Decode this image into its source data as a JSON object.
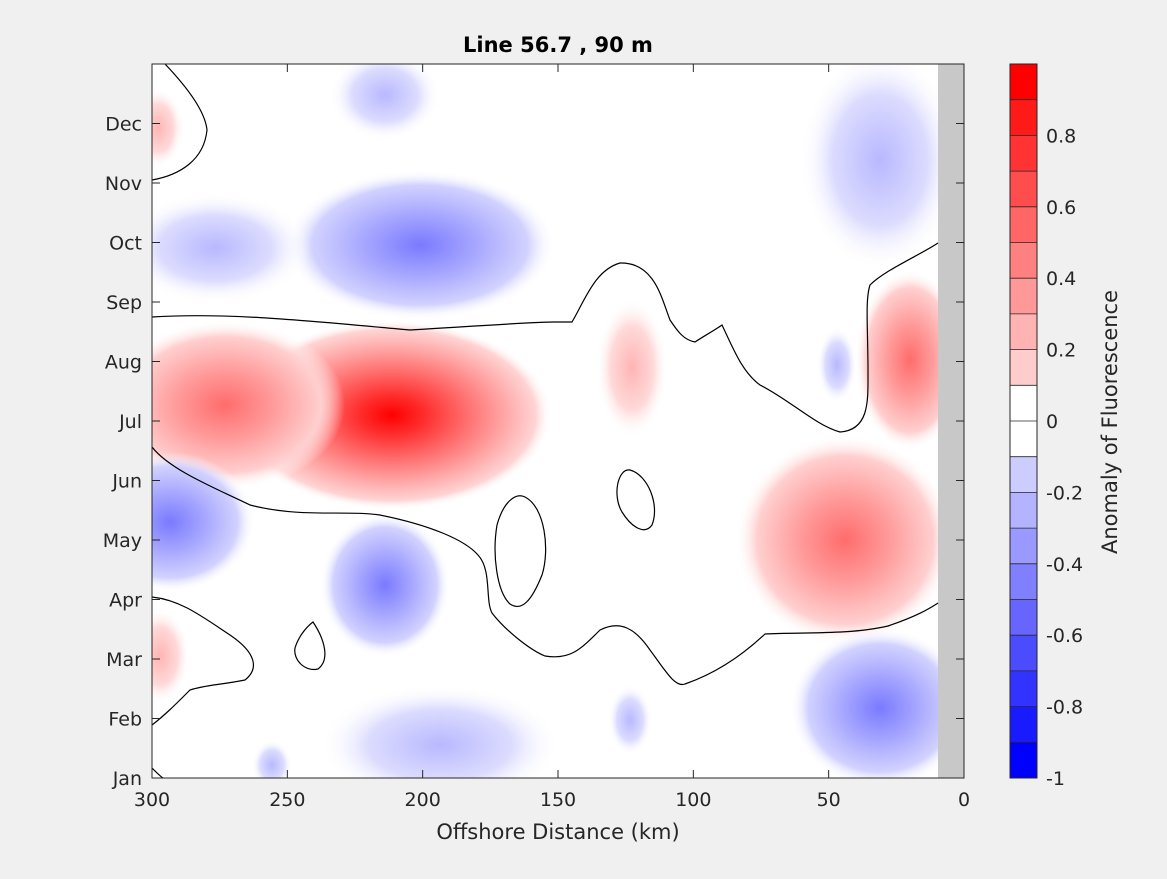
{
  "chart_data": {
    "type": "heatmap",
    "title": "Line 56.7 , 90 m",
    "xlabel": "Offshore Distance (km)",
    "ylabel": "",
    "xlim": [
      300,
      0
    ],
    "x_reversed": true,
    "xticks": [
      "300",
      "250",
      "200",
      "150",
      "100",
      "50",
      "0"
    ],
    "xtick_values": [
      300,
      250,
      200,
      150,
      100,
      50,
      0
    ],
    "yticks": [
      "Jan",
      "Feb",
      "Mar",
      "Apr",
      "May",
      "Jun",
      "Jul",
      "Aug",
      "Sep",
      "Oct",
      "Nov",
      "Dec"
    ],
    "colorbar": {
      "label": "Anomaly of Fluorescence",
      "range": [
        -1,
        1
      ],
      "levels": 20,
      "ticks": [
        "0.8",
        "0.6",
        "0.4",
        "0.2",
        "0",
        "-0.2",
        "-0.4",
        "-0.6",
        "-0.8",
        "-1"
      ],
      "tick_values": [
        0.8,
        0.6,
        0.4,
        0.2,
        0,
        -0.2,
        -0.4,
        -0.6,
        -0.8,
        -1
      ],
      "low_color": "#0000ff",
      "mid_color": "#ffffff",
      "high_color": "#ff0000"
    },
    "land_mask": {
      "x_range": [
        0,
        10
      ],
      "color": "#c8c8c8"
    },
    "features": [
      {
        "kind": "positive",
        "x": 215,
        "month": "Jul",
        "peak": 1.0
      },
      {
        "kind": "positive",
        "x": 270,
        "month": "Jul",
        "peak": 0.45
      },
      {
        "kind": "positive",
        "x": 42,
        "month": "May",
        "peak": 0.6
      },
      {
        "kind": "positive",
        "x": 20,
        "month": "Aug",
        "peak": 0.45
      },
      {
        "kind": "positive",
        "x": 125,
        "month": "Aug",
        "peak": 0.15
      },
      {
        "kind": "positive",
        "x": 298,
        "month": "Dec",
        "peak": 0.15
      },
      {
        "kind": "positive",
        "x": 298,
        "month": "Mar",
        "peak": 0.15
      },
      {
        "kind": "negative",
        "x": 215,
        "month": "Oct",
        "peak": -0.55
      },
      {
        "kind": "negative",
        "x": 290,
        "month": "Oct",
        "peak": -0.35
      },
      {
        "kind": "negative",
        "x": 300,
        "month": "May",
        "peak": -0.55
      },
      {
        "kind": "negative",
        "x": 215,
        "month": "Apr",
        "peak": -0.4
      },
      {
        "kind": "negative",
        "x": 30,
        "month": "Feb",
        "peak": -0.45
      },
      {
        "kind": "negative",
        "x": 35,
        "month": "Nov",
        "peak": -0.3
      },
      {
        "kind": "negative",
        "x": 200,
        "month": "Jan",
        "peak": -0.3
      },
      {
        "kind": "negative",
        "x": 45,
        "month": "Aug",
        "peak": -0.15
      }
    ]
  }
}
